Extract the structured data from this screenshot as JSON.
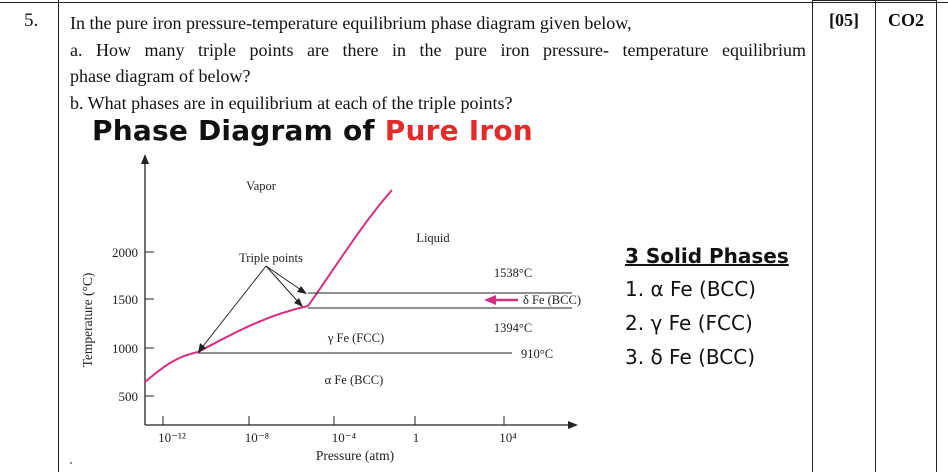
{
  "question": {
    "number": "5.",
    "marks": "[05]",
    "co": "CO2",
    "line1": "In the pure iron pressure-temperature equilibrium phase diagram given below,",
    "part_a_line1": "a. How many triple points are there in the pure iron pressure- temperature equilibrium",
    "part_a_line2": "phase diagram of below?",
    "part_b": "b. What phases are in equilibrium at each of the triple points?"
  },
  "diagram": {
    "title_black": "Phase Diagram of ",
    "title_red": "Pure Iron",
    "title_red_color": "#e32b2b",
    "curve_color": "#d62f7f",
    "ylabel": "Temperature (°C)",
    "xlabel": "Pressure (atm)",
    "y_ticks": [
      "2000",
      "1500",
      "1000",
      "500"
    ],
    "x_ticks": [
      "10⁻¹²",
      "10⁻⁸",
      "10⁻⁴",
      "1",
      "10⁴"
    ],
    "labels": {
      "vapor": "Vapor",
      "liquid": "Liquid",
      "triple_points": "Triple points",
      "t1538": "1538°C",
      "delta_fe": "δ Fe (BCC)",
      "t1394": "1394°C",
      "gamma_fe": "γ Fe (FCC)",
      "t910": "910°C",
      "alpha_fe": "α Fe (BCC)"
    }
  },
  "solid_phases": {
    "title": "3 Solid Phases",
    "items": [
      "1. α Fe (BCC)",
      "2. γ Fe (FCC)",
      "3. δ Fe (BCC)"
    ]
  }
}
